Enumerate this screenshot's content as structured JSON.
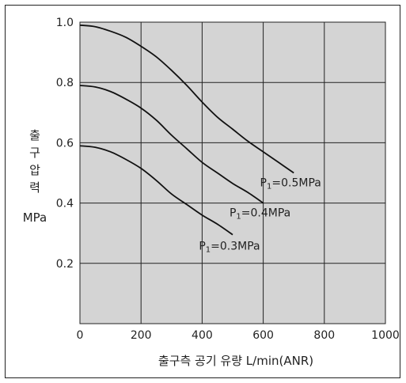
{
  "chart_data": {
    "type": "line",
    "xlabel": "출구측 공기 유량 L/min(ANR)",
    "ylabel_chars": [
      "출",
      "구",
      "압",
      "력"
    ],
    "ylabel_unit": "MPa",
    "xlim": [
      0,
      1000
    ],
    "ylim": [
      0,
      1.0
    ],
    "x_ticks": [
      "0",
      "200",
      "400",
      "600",
      "800",
      "1000"
    ],
    "y_ticks": [
      "0.2",
      "0.4",
      "0.6",
      "0.8",
      "1.0"
    ],
    "grid": true,
    "plot_background": "#d4d4d4",
    "series": [
      {
        "name": "P1=0.5MPa",
        "label_main": "P",
        "label_sub": "1",
        "label_rest": "=0.5MPa",
        "points": [
          [
            0,
            0.99
          ],
          [
            50,
            0.985
          ],
          [
            100,
            0.97
          ],
          [
            150,
            0.95
          ],
          [
            200,
            0.92
          ],
          [
            250,
            0.885
          ],
          [
            300,
            0.84
          ],
          [
            350,
            0.79
          ],
          [
            400,
            0.735
          ],
          [
            450,
            0.685
          ],
          [
            500,
            0.645
          ],
          [
            550,
            0.605
          ],
          [
            600,
            0.57
          ],
          [
            650,
            0.535
          ],
          [
            700,
            0.5
          ]
        ]
      },
      {
        "name": "P1=0.4MPa",
        "label_main": "P",
        "label_sub": "1",
        "label_rest": "=0.4MPa",
        "points": [
          [
            0,
            0.79
          ],
          [
            50,
            0.785
          ],
          [
            100,
            0.77
          ],
          [
            150,
            0.745
          ],
          [
            200,
            0.715
          ],
          [
            250,
            0.675
          ],
          [
            300,
            0.625
          ],
          [
            350,
            0.58
          ],
          [
            400,
            0.535
          ],
          [
            450,
            0.5
          ],
          [
            500,
            0.465
          ],
          [
            550,
            0.435
          ],
          [
            600,
            0.4
          ]
        ]
      },
      {
        "name": "P1=0.3MPa",
        "label_main": "P",
        "label_sub": "1",
        "label_rest": "=0.3MPa",
        "points": [
          [
            0,
            0.59
          ],
          [
            50,
            0.585
          ],
          [
            100,
            0.57
          ],
          [
            150,
            0.545
          ],
          [
            200,
            0.515
          ],
          [
            250,
            0.475
          ],
          [
            300,
            0.43
          ],
          [
            350,
            0.395
          ],
          [
            400,
            0.36
          ],
          [
            450,
            0.33
          ],
          [
            500,
            0.295
          ]
        ]
      }
    ]
  }
}
